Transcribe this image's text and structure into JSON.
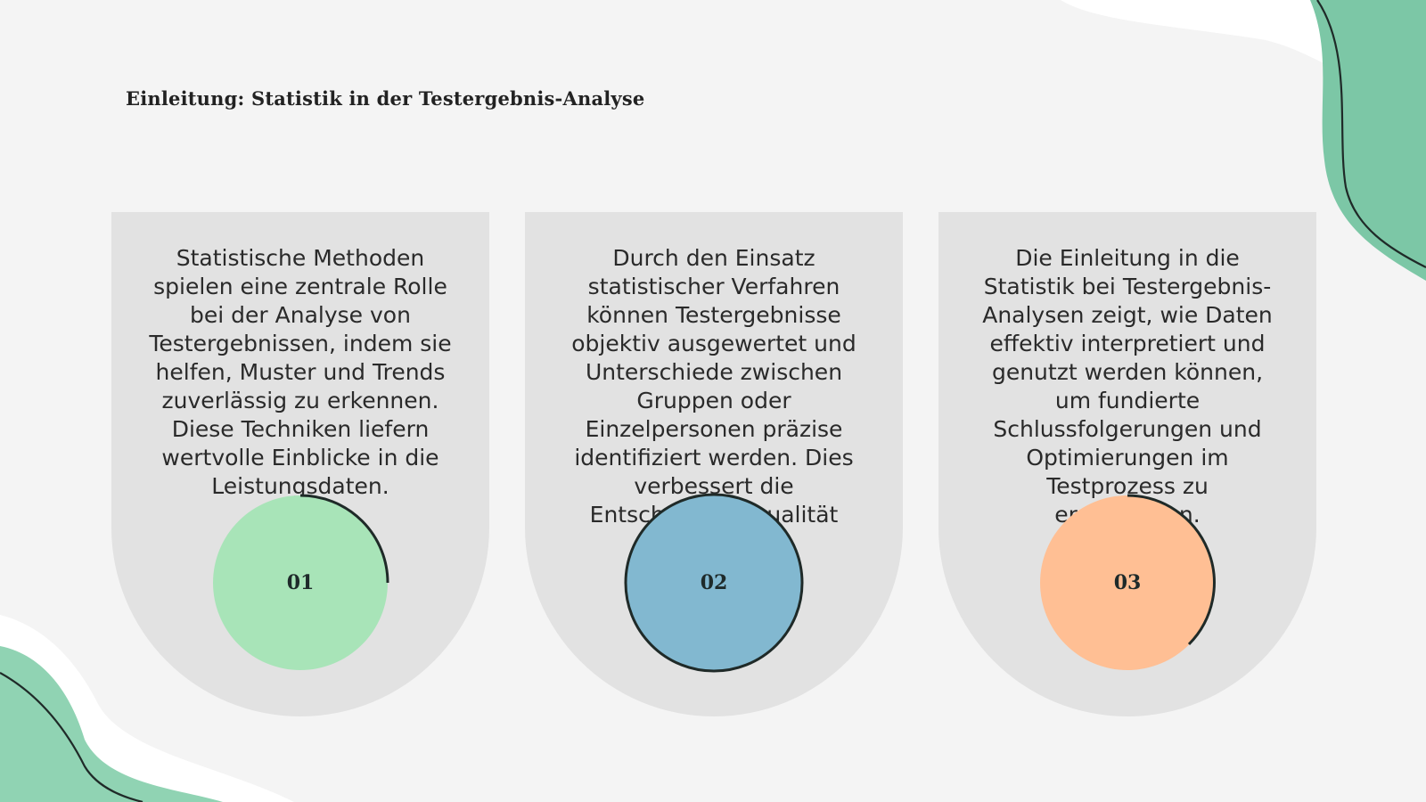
{
  "slide": {
    "title": "Einleitung: Statistik in der Testergebnis-Analyse",
    "colors": {
      "background": "#f4f4f4",
      "card": "#e2e2e2",
      "accent_green": "#a8e4b8",
      "accent_blue": "#82b8d0",
      "accent_orange": "#ffbf94",
      "decor_green": "#7cc7a6"
    }
  },
  "cards": [
    {
      "number": "01",
      "text": "Statistische Methoden spielen eine zentrale Rolle bei der Analyse von Testergebnissen, indem sie helfen, Muster und Trends zuverlässig zu erkennen. Diese Techniken liefern wertvolle Einblicke in die Leistungsdaten.",
      "color": "#a8e4b8"
    },
    {
      "number": "02",
      "text": "Durch den Einsatz statistischer Verfahren können Testergebnisse objektiv ausgewertet und Unterschiede zwischen Gruppen oder Einzelpersonen präzise identifiziert werden. Dies verbessert die Entscheidungsqualität",
      "color": "#82b8d0"
    },
    {
      "number": "03",
      "text": "Die Einleitung in die Statistik bei Testergebnis-Analysen zeigt, wie Daten effektiv interpretiert und genutzt werden können, um fundierte Schlussfolgerungen und Optimierungen im Testprozess zu ermöglichen.",
      "color": "#ffbf94"
    }
  ]
}
